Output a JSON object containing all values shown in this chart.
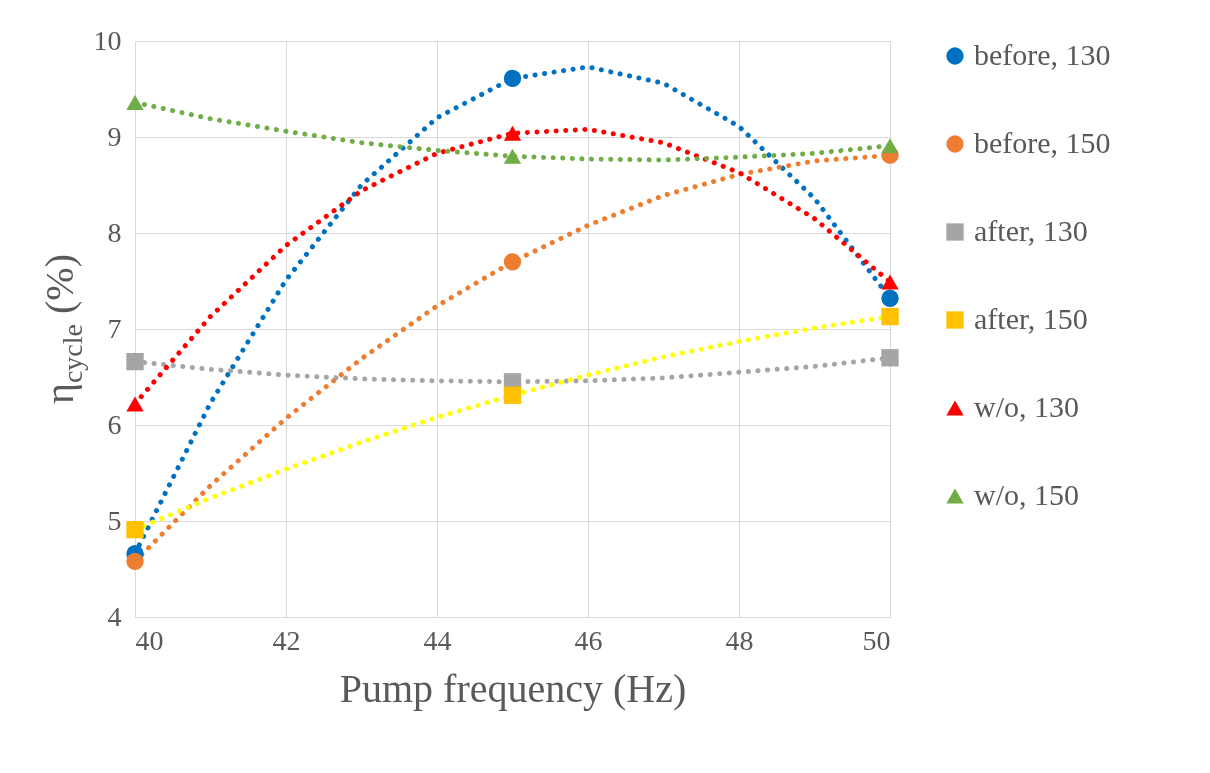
{
  "chart_data": {
    "type": "scatter",
    "xlabel": "Pump frequency (Hz)",
    "ylabel": "η$_{cycle}$ (%)",
    "xlim": [
      40,
      50
    ],
    "xticks": [
      40,
      42,
      44,
      46,
      48,
      50
    ],
    "ylim": [
      4,
      10
    ],
    "yticks": [
      4,
      5,
      6,
      7,
      8,
      9,
      10
    ],
    "grid": true,
    "legend": "right",
    "series": [
      {
        "type": "line",
        "color": "#0070c0",
        "line_style": "dotted",
        "x": [
          40,
          41,
          42,
          43,
          44,
          45,
          46,
          47,
          48,
          49,
          50
        ],
        "values": [
          4.66,
          6.23,
          7.51,
          8.5,
          9.2,
          9.61,
          9.73,
          9.56,
          9.11,
          8.36,
          7.32
        ]
      },
      {
        "type": "line",
        "color": "#ed7d31",
        "line_style": "dotted",
        "x": [
          40,
          41,
          42,
          43,
          44,
          45,
          46,
          47,
          48,
          49,
          50
        ],
        "values": [
          4.58,
          5.37,
          6.07,
          6.69,
          7.24,
          7.7,
          8.08,
          8.39,
          8.61,
          8.75,
          8.81
        ]
      },
      {
        "type": "line",
        "color": "#a5a5a5",
        "line_style": "dotted",
        "x": [
          40,
          41,
          42,
          43,
          44,
          45,
          46,
          47,
          48,
          49,
          50
        ],
        "values": [
          6.66,
          6.58,
          6.52,
          6.48,
          6.46,
          6.45,
          6.46,
          6.49,
          6.55,
          6.61,
          6.7
        ]
      },
      {
        "type": "line",
        "color": "#ffff00",
        "line_style": "dotted",
        "x": [
          40,
          41,
          42,
          43,
          44,
          45,
          46,
          47,
          48,
          49,
          50
        ],
        "values": [
          4.91,
          5.24,
          5.54,
          5.82,
          6.08,
          6.31,
          6.52,
          6.71,
          6.87,
          7.01,
          7.13
        ]
      },
      {
        "type": "line",
        "color": "#ff0000",
        "line_style": "dotted",
        "x": [
          40,
          41,
          42,
          43,
          44,
          45,
          46,
          47,
          48,
          49,
          50
        ],
        "values": [
          6.22,
          7.13,
          7.87,
          8.44,
          8.83,
          9.04,
          9.08,
          8.94,
          8.63,
          8.15,
          7.49
        ]
      },
      {
        "type": "line",
        "color": "#70ad47",
        "line_style": "dotted",
        "x": [
          40,
          41,
          42,
          43,
          44,
          45,
          46,
          47,
          48,
          49,
          50
        ],
        "values": [
          9.36,
          9.19,
          9.06,
          8.94,
          8.86,
          8.8,
          8.77,
          8.76,
          8.79,
          8.83,
          8.91
        ]
      },
      {
        "name": "before, 130",
        "color": "#0070c0",
        "marker": "circle",
        "x": [
          40,
          45,
          50
        ],
        "values": [
          4.66,
          9.61,
          7.32
        ]
      },
      {
        "name": "before, 150",
        "color": "#ed7d31",
        "marker": "circle",
        "x": [
          40,
          45,
          50
        ],
        "values": [
          4.58,
          7.7,
          8.81
        ]
      },
      {
        "name": "after, 130",
        "color": "#a5a5a5",
        "marker": "square",
        "x": [
          40,
          45,
          50
        ],
        "values": [
          6.66,
          6.45,
          6.7
        ]
      },
      {
        "name": "after, 150",
        "color": "#ffc000",
        "marker": "square",
        "x": [
          40,
          45,
          50
        ],
        "values": [
          4.91,
          6.31,
          7.13
        ]
      },
      {
        "name": "w/o, 130",
        "color": "#ff0000",
        "marker": "triangle",
        "x": [
          40,
          45,
          50
        ],
        "values": [
          6.22,
          9.04,
          7.49
        ]
      },
      {
        "name": "w/o, 150",
        "color": "#70ad47",
        "marker": "triangle",
        "x": [
          40,
          45,
          50
        ],
        "values": [
          9.36,
          8.8,
          8.91
        ]
      }
    ]
  }
}
